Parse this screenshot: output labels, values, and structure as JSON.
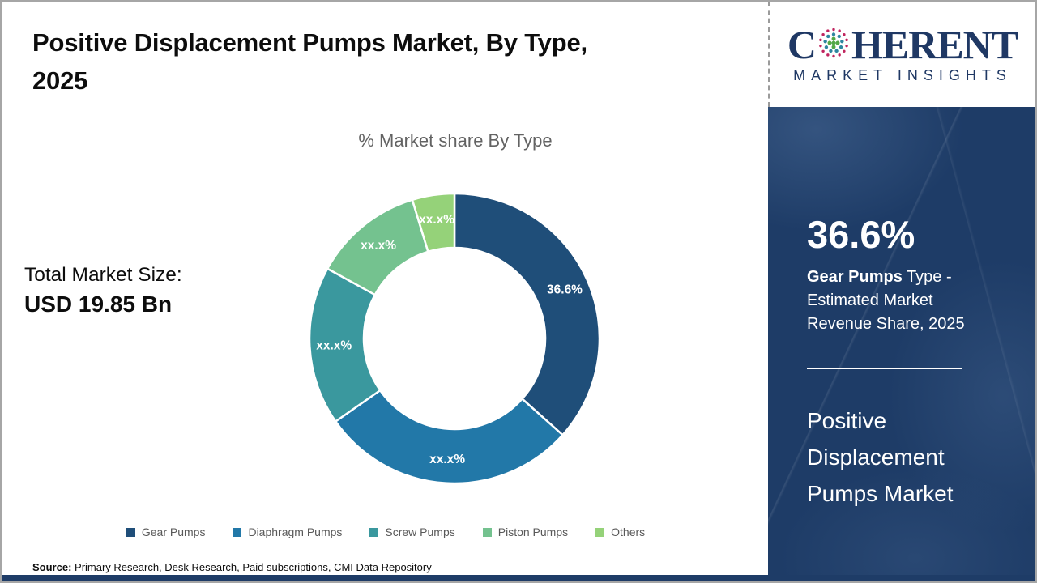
{
  "header": {
    "title_line1": "Positive Displacement Pumps Market, By Type,",
    "title_line2": "2025"
  },
  "logo": {
    "prefix": "C",
    "suffix": "HERENT",
    "tagline": "MARKET INSIGHTS",
    "brand_color": "#1f3864",
    "dot_colors": {
      "outer": "#c0245e",
      "middle": "#2e86a0",
      "inner": "#53a948"
    }
  },
  "total_market": {
    "label": "Total Market Size:",
    "value": "USD 19.85 Bn"
  },
  "chart_data": {
    "type": "pie",
    "subtype": "donut",
    "title": "% Market share By Type",
    "categories": [
      "Gear Pumps",
      "Diaphragm Pumps",
      "Screw Pumps",
      "Piston Pumps",
      "Others"
    ],
    "values": [
      36.6,
      28.7,
      17.7,
      12.3,
      4.7
    ],
    "value_labels": [
      "36.6%",
      "xx.x%",
      "xx.x%",
      "xx.x%",
      "xx.x%"
    ],
    "colors": [
      "#1F4E79",
      "#2278A8",
      "#3A989E",
      "#74C28F",
      "#95D279"
    ],
    "legend_position": "bottom",
    "start_angle_deg": 0,
    "values_note": "Only the Gear Pumps share (36.6%) is printed; other shares are masked as xx.x% and estimated from arc angles."
  },
  "sidebar": {
    "bg_color": "#1e3c67",
    "stat_value": "36.6%",
    "stat_label_bold": "Gear Pumps",
    "stat_label_rest": " Type - Estimated Market Revenue Share, 2025",
    "market_name": "Positive Displacement Pumps Market"
  },
  "source": {
    "label": "Source:",
    "text": " Primary Research, Desk Research, Paid subscriptions, CMI Data Repository"
  }
}
